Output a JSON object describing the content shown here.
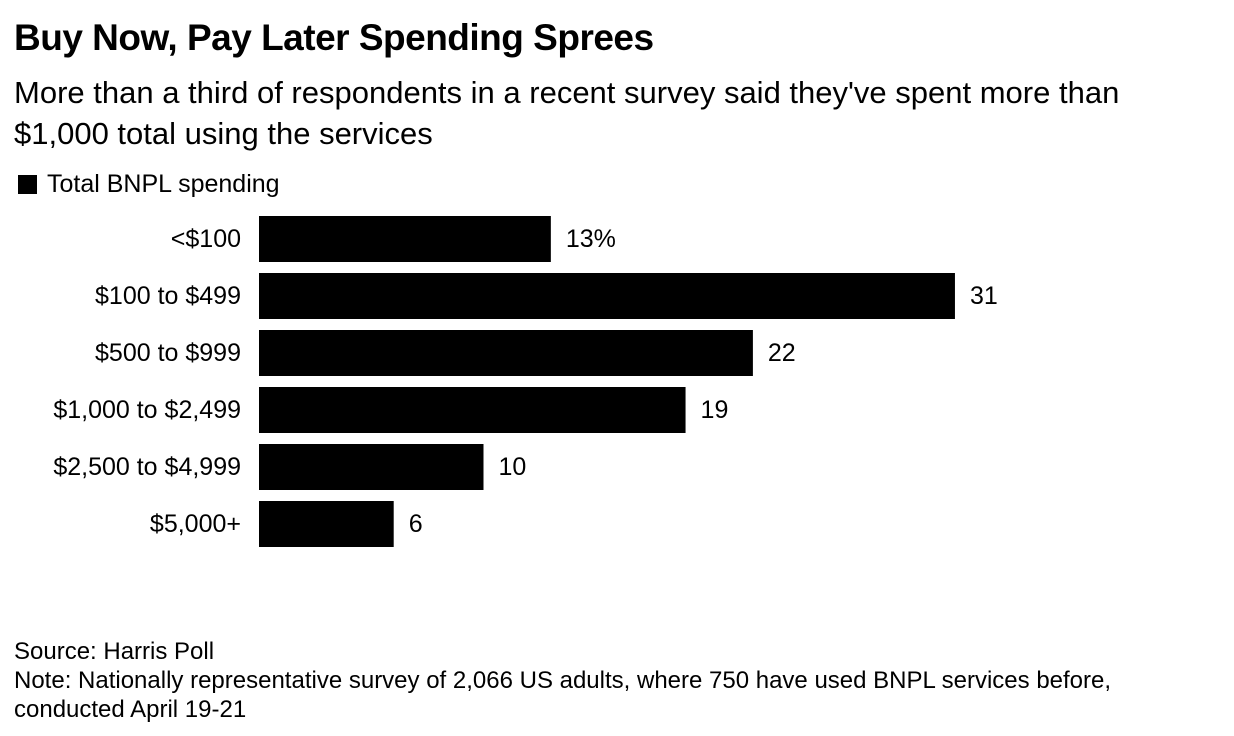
{
  "title": "Buy Now, Pay Later Spending Sprees",
  "subtitle": "More than a third of respondents in a recent survey said they've spent more than $1,000 total using the services",
  "legend": {
    "label": "Total BNPL spending",
    "color": "#000000"
  },
  "chart_data": {
    "type": "bar",
    "orientation": "horizontal",
    "categories": [
      "<$100",
      "$100 to $499",
      "$500 to $999",
      "$1,000 to $2,499",
      "$2,500 to $4,999",
      "$5,000+"
    ],
    "series": [
      {
        "name": "Total BNPL spending",
        "values": [
          13,
          31,
          22,
          19,
          10,
          6
        ],
        "value_labels": [
          "13%",
          "31",
          "22",
          "19",
          "10",
          "6"
        ],
        "color": "#000000"
      }
    ],
    "legend_position": "top-left",
    "grid": false
  },
  "footer": {
    "source": "Source: Harris Poll",
    "note": "Note: Nationally representative survey of 2,066 US adults, where 750 have used BNPL services before, conducted April 19-21"
  }
}
